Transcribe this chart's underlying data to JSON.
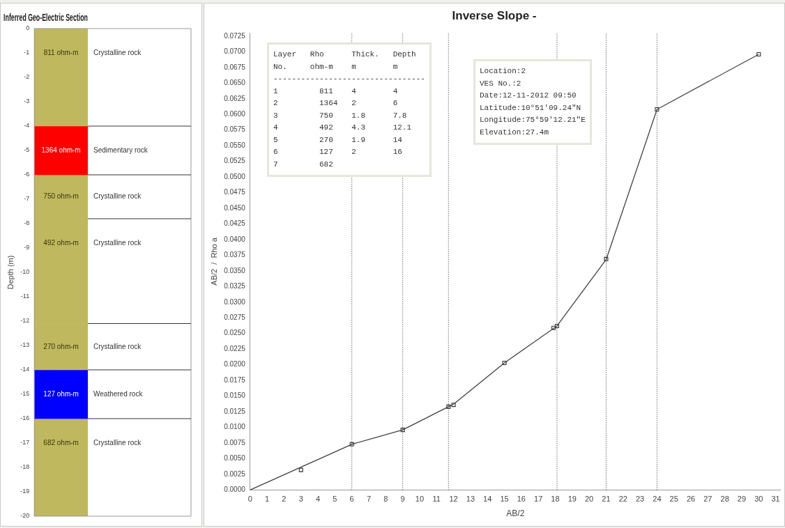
{
  "chart_data": [
    {
      "type": "bar",
      "title": "Inferred Geo-Electric Section",
      "ylabel": "Depth (m)",
      "stacked": true,
      "categories": [
        null
      ],
      "tick_labels": "y",
      "legend": false,
      "grid": false,
      "series": [
        {
          "name": "811 ohm-m",
          "color": "#bfb85e",
          "values": [
            -4
          ]
        },
        {
          "name": "1364 ohm-m",
          "color": "#ff0000",
          "values": [
            -2
          ]
        },
        {
          "name": "750 ohm-m",
          "color": "#bfb85e",
          "values": [
            -1.8
          ]
        },
        {
          "name": "492 ohm-m",
          "color": "#bfb85e",
          "values": [
            -4.3
          ]
        },
        {
          "name": "270 ohm-m",
          "color": "#bfb85e",
          "values": [
            -1.9
          ]
        },
        {
          "name": "127 ohm-m",
          "color": "#0000ff",
          "values": [
            -2
          ]
        },
        {
          "name": "682 ohm-m",
          "color": "#bfb85e",
          "values": [
            -4
          ]
        }
      ],
      "ylim": [
        -20,
        0
      ],
      "yticks": [
        0,
        -1,
        -2,
        -3,
        -4,
        -5,
        -6,
        -7,
        -8,
        -9,
        -10,
        -11,
        -12,
        -13,
        -14,
        -15,
        -16,
        -17,
        -18,
        -19,
        -20
      ],
      "annotations": [
        "Crystalline rock",
        "Sedimentary rock",
        "Crystalline rock",
        "Crystalline rock",
        "Crystalline rock",
        "Weathered rock",
        "Crystalline rock"
      ]
    },
    {
      "type": "line",
      "title": "Inverse Slope -",
      "xlabel": "AB/2",
      "ylabel": "AB/2  /  Rho a",
      "legend": false,
      "grid": false,
      "series": [
        {
          "type": "line",
          "color": "#404040",
          "marker": "none",
          "x": [
            0,
            6,
            9,
            11.7,
            12,
            15,
            18.1,
            21,
            24,
            30
          ],
          "values": [
            0,
            0.0073,
            0.0096,
            0.0133,
            0.0137,
            0.0203,
            0.0262,
            0.0368,
            0.0608,
            0.0696
          ]
        },
        {
          "type": "scatter",
          "color": "#303030",
          "marker": "square",
          "x": [
            3,
            6,
            9,
            11.7,
            12,
            15,
            17.9,
            18.1,
            21,
            24,
            30
          ],
          "values": [
            0.0032,
            0.0073,
            0.0096,
            0.0133,
            0.0136,
            0.0203,
            0.0259,
            0.0262,
            0.0369,
            0.0608,
            0.0696
          ]
        }
      ],
      "xlim": [
        0,
        31.3
      ],
      "xticks": [
        0,
        1,
        2,
        3,
        4,
        5,
        6,
        7,
        8,
        9,
        10,
        11,
        12,
        13,
        14,
        15,
        16,
        17,
        18,
        19,
        20,
        21,
        22,
        23,
        24,
        25,
        26,
        27,
        28,
        29,
        30,
        31
      ],
      "ylim": [
        0,
        0.073
      ],
      "yticks": [
        {
          "value": 0,
          "label": "0.0000"
        },
        {
          "value": 0.0025,
          "label": "0.0025"
        },
        {
          "value": 0.005,
          "label": "0.0050"
        },
        {
          "value": 0.0075,
          "label": "0.0075"
        },
        {
          "value": 0.01,
          "label": "0.0100"
        },
        {
          "value": 0.0125,
          "label": "0.0125"
        },
        {
          "value": 0.015,
          "label": "0.0150"
        },
        {
          "value": 0.0175,
          "label": "0.0175"
        },
        {
          "value": 0.02,
          "label": "0.0200"
        },
        {
          "value": 0.0225,
          "label": "0.0225"
        },
        {
          "value": 0.025,
          "label": "0.0250"
        },
        {
          "value": 0.0275,
          "label": "0.0275"
        },
        {
          "value": 0.03,
          "label": "0.0300"
        },
        {
          "value": 0.0325,
          "label": "0.0325"
        },
        {
          "value": 0.035,
          "label": "0.0350"
        },
        {
          "value": 0.0375,
          "label": "0.0375"
        },
        {
          "value": 0.04,
          "label": "0.0400"
        },
        {
          "value": 0.0425,
          "label": "0.0425"
        },
        {
          "value": 0.045,
          "label": "0.0450"
        },
        {
          "value": 0.0475,
          "label": "0.0475"
        },
        {
          "value": 0.05,
          "label": "0.0500"
        },
        {
          "value": 0.0525,
          "label": "0.0525"
        },
        {
          "value": 0.055,
          "label": "0.0550"
        },
        {
          "value": 0.0575,
          "label": "0.0575"
        },
        {
          "value": 0.06,
          "label": "0.0600"
        },
        {
          "value": 0.0625,
          "label": "0.0625"
        },
        {
          "value": 0.065,
          "label": "0.0650"
        },
        {
          "value": 0.0675,
          "label": "0.0675"
        },
        {
          "value": 0.07,
          "label": "0.0700"
        },
        {
          "value": 0.0725,
          "label": "0.0725"
        }
      ],
      "ref_lines": [
        {
          "axis": "x",
          "value": 6,
          "line_style": "dotted",
          "color": "#303030"
        },
        {
          "axis": "x",
          "value": 9,
          "line_style": "dotted",
          "color": "#303030"
        },
        {
          "axis": "x",
          "value": 11.7,
          "line_style": "dotted",
          "color": "#303030"
        },
        {
          "axis": "x",
          "value": 18.1,
          "line_style": "dotted",
          "color": "#303030"
        },
        {
          "axis": "x",
          "value": 21,
          "line_style": "dotted",
          "color": "#303030"
        },
        {
          "axis": "x",
          "value": 24,
          "line_style": "dotted",
          "color": "#303030"
        }
      ],
      "annotations": [
        "Layer   Rho      Thick.   Depth\nNo.     ohm-m    m        m\n---------------------------------\n1         811    4        4\n2         1364   2        6\n3         750    1.8      7.8\n4         492    4.3      12.1\n5         270    1.9      14\n6         127    2        16\n7         682",
        "Location:2\nVES No.:2\nDate:12-11-2012 09:50\nLatitude:10°51'09.24\"N\nLongitude:75°59'12.21\"E\nElevation:27.4m"
      ]
    }
  ]
}
